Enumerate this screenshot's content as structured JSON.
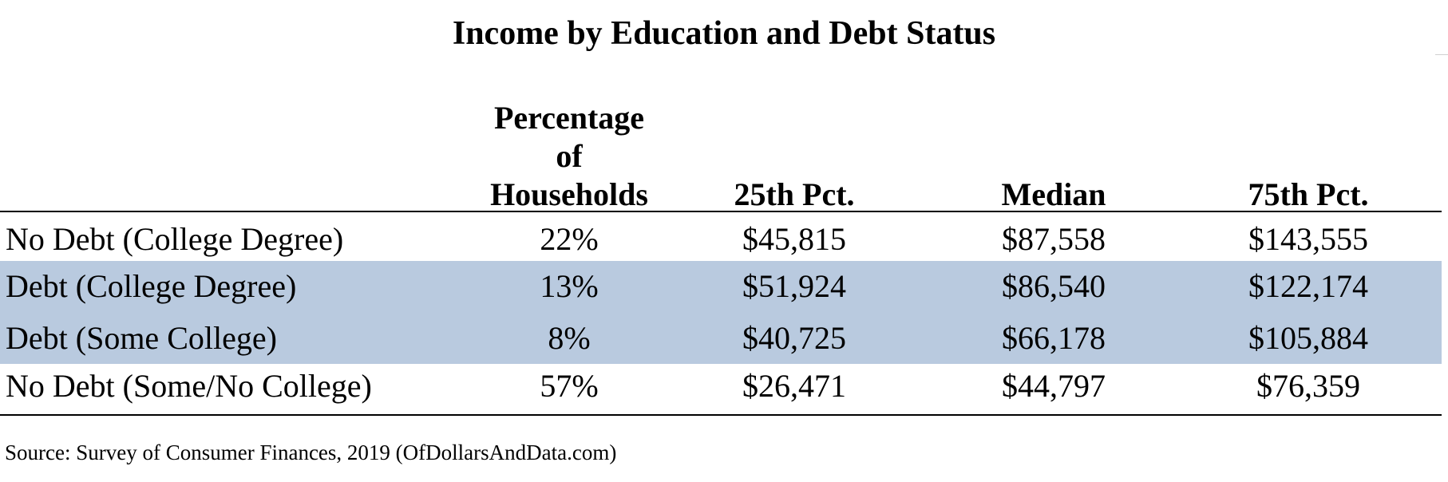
{
  "chart_data": {
    "type": "table",
    "title": "Income by Education and Debt Status",
    "columns": [
      "Percentage of Households",
      "25th Pct.",
      "Median",
      "75th Pct."
    ],
    "rows": [
      {
        "label": "No Debt (College Degree)",
        "shaded": false,
        "cells": [
          "22%",
          "$45,815",
          "$87,558",
          "$143,555"
        ]
      },
      {
        "label": "Debt (College Degree)",
        "shaded": true,
        "cells": [
          "13%",
          "$51,924",
          "$86,540",
          "$122,174"
        ]
      },
      {
        "label": "Debt (Some College)",
        "shaded": true,
        "cells": [
          "8%",
          "$40,725",
          "$66,178",
          "$105,884"
        ]
      },
      {
        "label": "No Debt (Some/No College)",
        "shaded": false,
        "cells": [
          "57%",
          "$26,471",
          "$44,797",
          "$76,359"
        ]
      }
    ],
    "highlight_color": "#b9cadf",
    "source": "Source: Survey of Consumer Finances, 2019 (OfDollarsAndData.com)"
  }
}
